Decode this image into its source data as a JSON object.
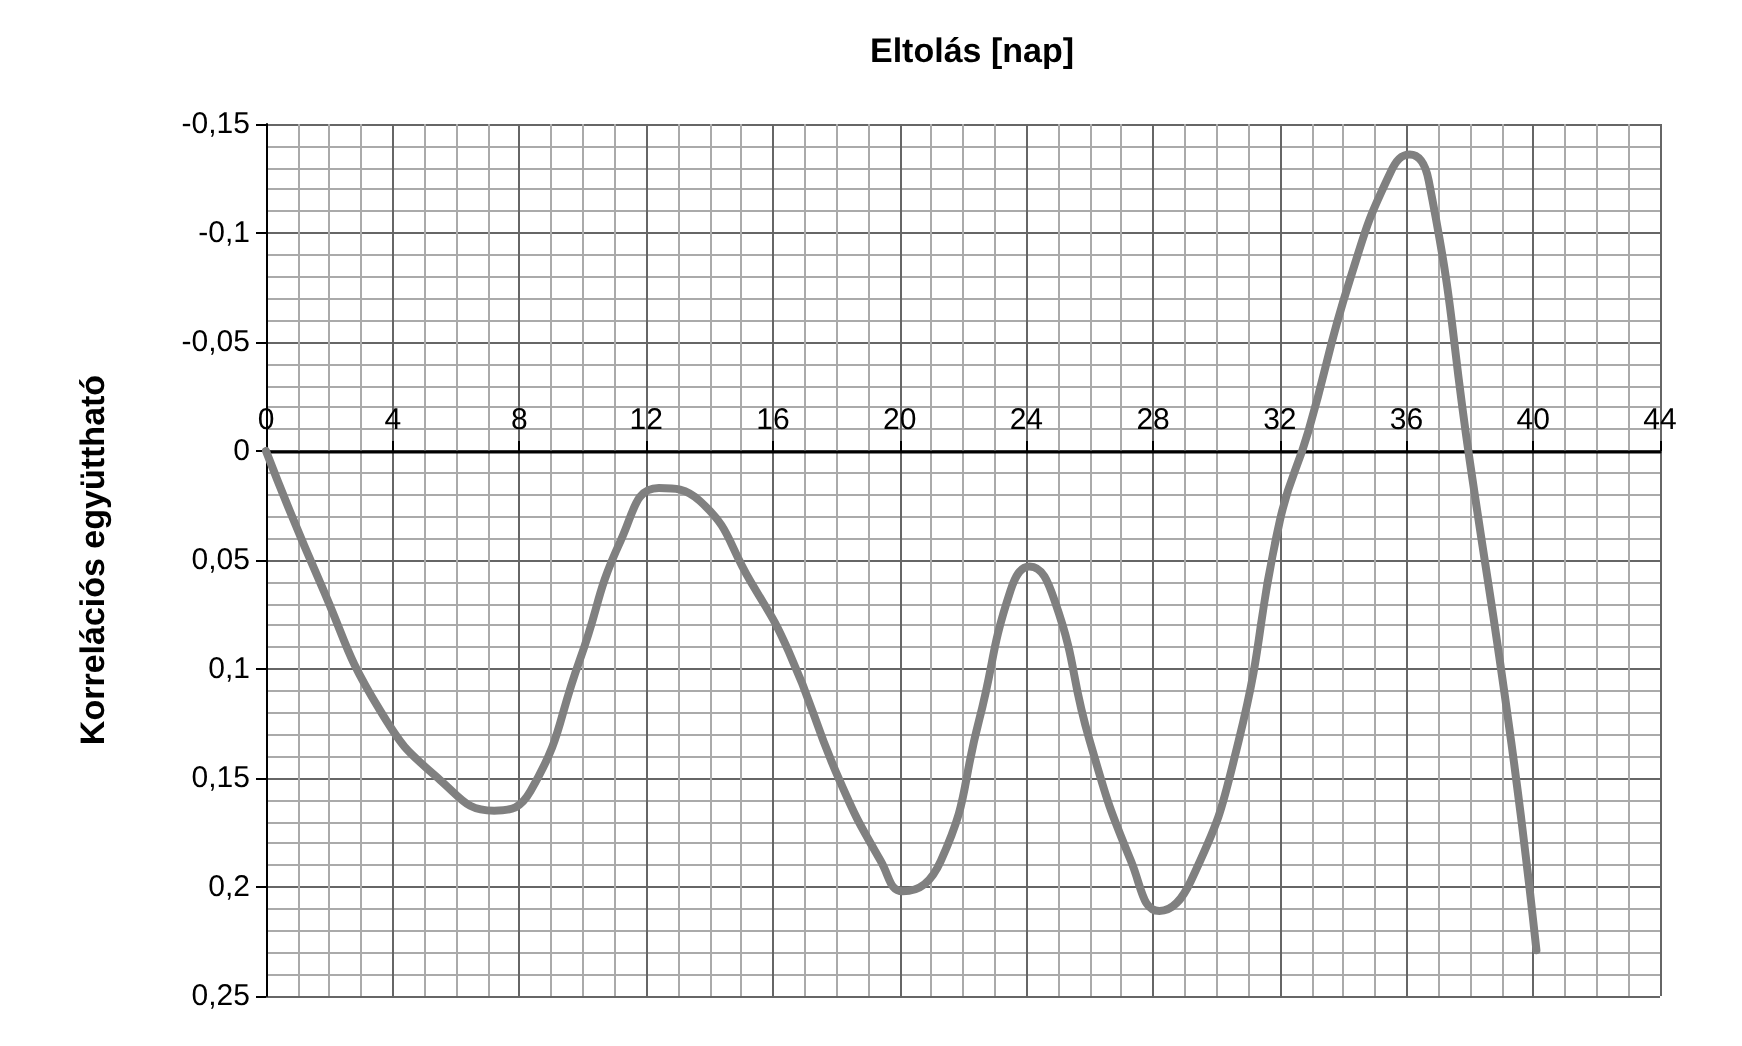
{
  "chart_data": {
    "type": "line",
    "xlabel": "Eltolás [nap]",
    "ylabel": "Korrelációs együttható",
    "x": [
      0,
      1.7,
      3.6,
      5.5,
      7.2,
      8.35,
      9.9,
      11.2,
      12.4,
      13.7,
      15.3,
      16.5,
      18.1,
      19.4,
      20.1,
      21.3,
      22.5,
      23.5,
      24.1,
      24.9,
      26,
      27.3,
      28.2,
      29.2,
      30.7,
      32,
      32.9,
      34.2,
      35.5,
      36.1,
      36.7,
      38,
      39.3,
      40.1
    ],
    "series": [
      {
        "color": "#808080",
        "values": [
          0,
          0.06,
          0.119,
          0.151,
          0.165,
          0.156,
          0.096,
          0.041,
          0.017,
          0.023,
          0.06,
          0.092,
          0.151,
          0.188,
          0.202,
          0.188,
          0.124,
          0.064,
          0.053,
          0.069,
          0.133,
          0.188,
          0.211,
          0.197,
          0.133,
          0.032,
          -0.009,
          -0.078,
          -0.128,
          -0.136,
          -0.124,
          0.005,
          0.133,
          0.229
        ]
      }
    ],
    "xlim": [
      0,
      44
    ],
    "xticks": [
      0,
      4,
      8,
      12,
      16,
      20,
      24,
      28,
      32,
      36,
      40,
      44
    ],
    "ylim": [
      0.25,
      -0.15
    ],
    "yticks": [
      {
        "value": -0.15,
        "label": "-0,15"
      },
      {
        "value": -0.1,
        "label": "-0,1"
      },
      {
        "value": -0.05,
        "label": "-0,05"
      },
      {
        "value": 0,
        "label": "0"
      },
      {
        "value": 0.05,
        "label": "0,05"
      },
      {
        "value": 0.1,
        "label": "0,1"
      },
      {
        "value": 0.15,
        "label": "0,15"
      },
      {
        "value": 0.2,
        "label": "0,2"
      },
      {
        "value": 0.25,
        "label": "0,25"
      }
    ],
    "grid": true,
    "marker": "none",
    "line_style": "solid"
  }
}
